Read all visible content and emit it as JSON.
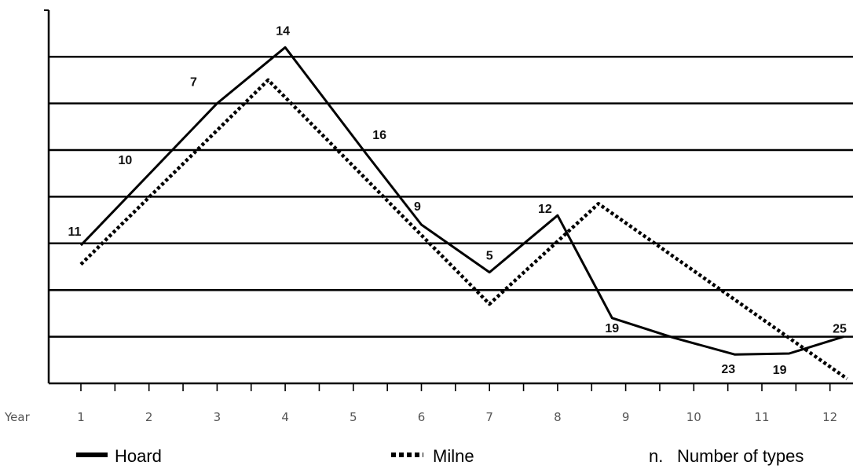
{
  "chart_data": {
    "type": "line",
    "x_label": "Year",
    "x": [
      1,
      2,
      3,
      4,
      5,
      6,
      7,
      8,
      9,
      10,
      11,
      12
    ],
    "xlim": [
      0.5,
      12.4
    ],
    "ylim": [
      0,
      7.2
    ],
    "grid": true,
    "legend_position": "bottom",
    "series": [
      {
        "name": "Hoard",
        "style": "solid",
        "color": "#000000",
        "points": [
          {
            "x": 1.0,
            "y": 2.96,
            "label": "11"
          },
          {
            "x": 3.0,
            "y": 6.0,
            "label": "7"
          },
          {
            "x": 4.0,
            "y": 7.2,
            "label": "14"
          },
          {
            "x": 5.2,
            "y": 4.9,
            "label": "16"
          },
          {
            "x": 6.0,
            "y": 3.4,
            "label": "9"
          },
          {
            "x": 7.0,
            "y": 2.38,
            "label": "5"
          },
          {
            "x": 8.0,
            "y": 3.6,
            "label": "12"
          },
          {
            "x": 8.8,
            "y": 1.4,
            "label": "19"
          },
          {
            "x": 9.7,
            "y": 0.98,
            "label": ""
          },
          {
            "x": 10.6,
            "y": 0.62,
            "label": "23"
          },
          {
            "x": 11.4,
            "y": 0.64,
            "label": "19"
          },
          {
            "x": 12.2,
            "y": 1.0,
            "label": "25"
          }
        ],
        "free_labels": [
          {
            "x": 1.65,
            "y": 4.7,
            "label": "10"
          }
        ]
      },
      {
        "name": "Milne",
        "style": "dotted",
        "color": "#000000",
        "points": [
          {
            "x": 1.0,
            "y": 2.55
          },
          {
            "x": 3.75,
            "y": 6.5
          },
          {
            "x": 7.0,
            "y": 1.7
          },
          {
            "x": 8.6,
            "y": 3.85
          },
          {
            "x": 12.25,
            "y": 0.1
          }
        ]
      }
    ],
    "legend": {
      "hoard": "Hoard",
      "milne": "Milne",
      "note_symbol": "n.",
      "note_text": "Number of types"
    }
  }
}
